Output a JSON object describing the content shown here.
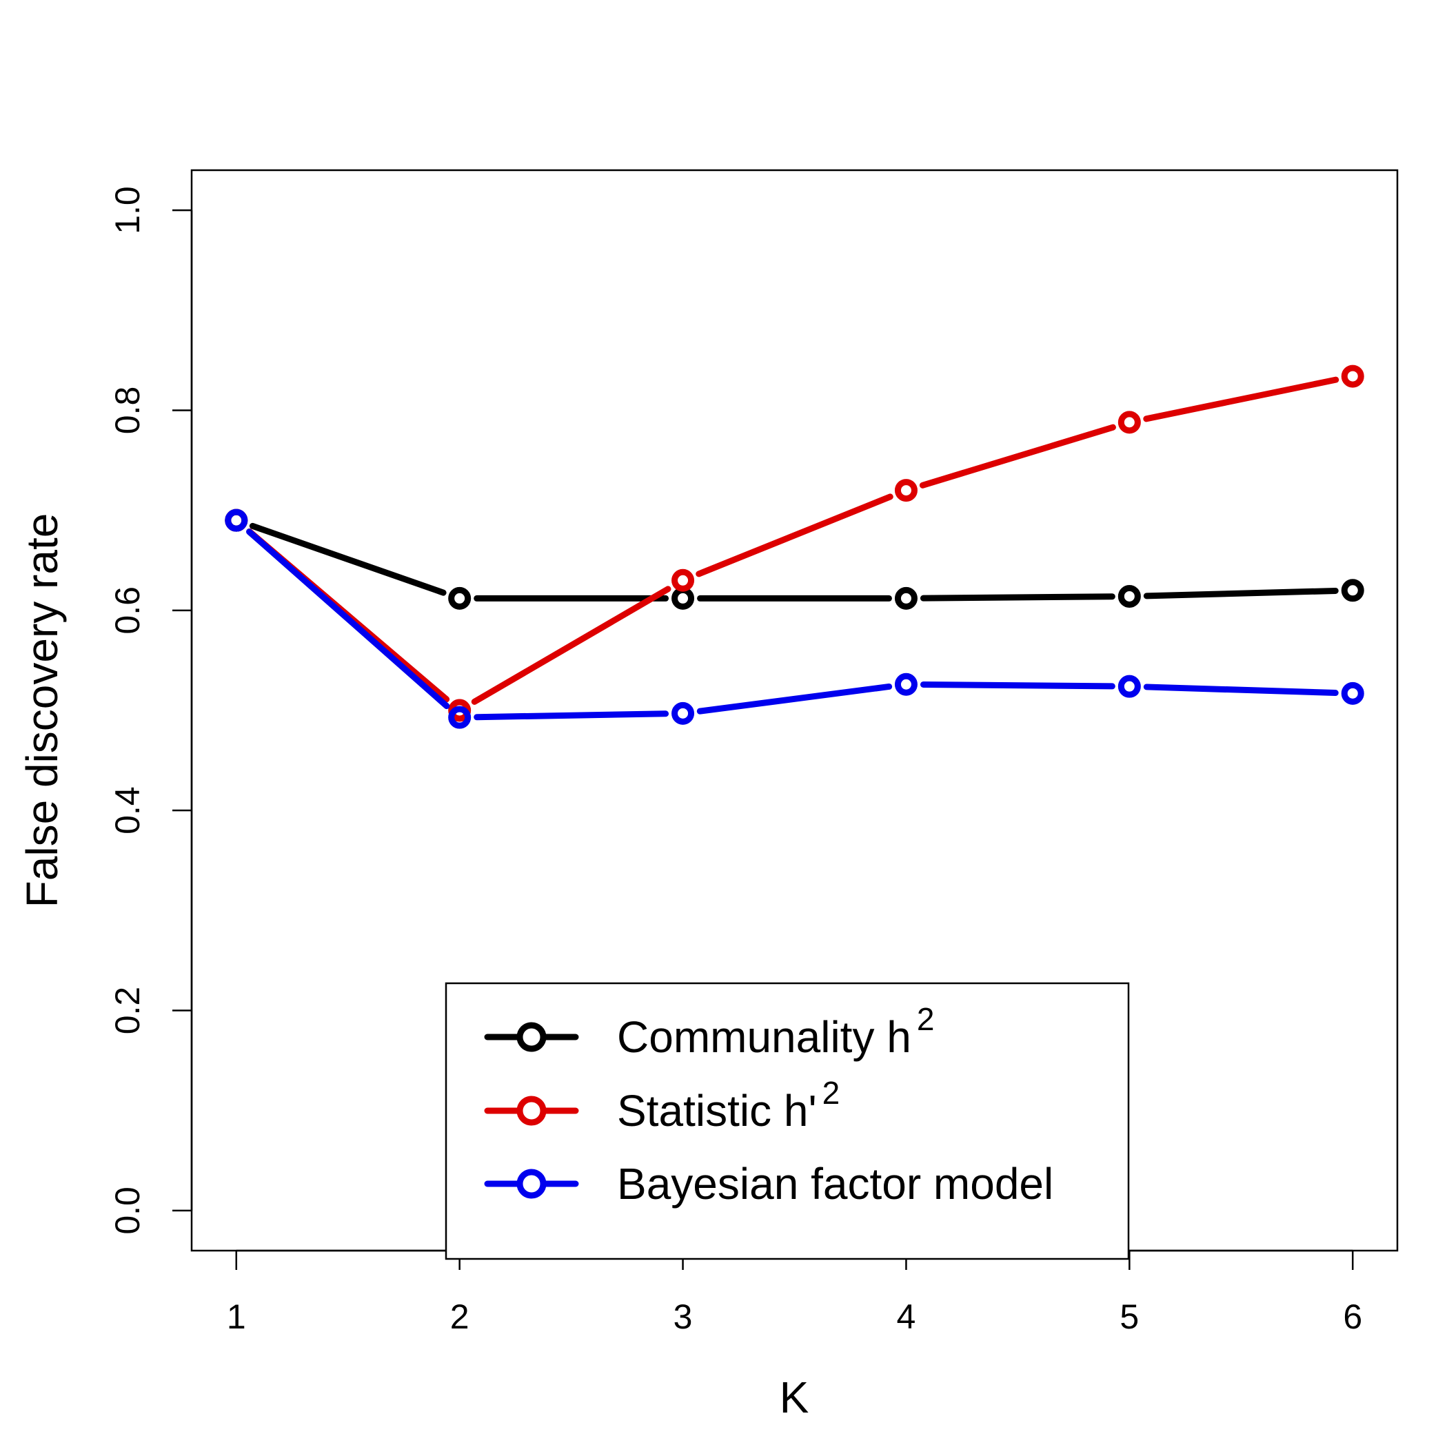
{
  "chart_data": {
    "type": "line",
    "xlabel": "K",
    "ylabel": "False discovery rate",
    "xlim": [
      0.8,
      6.2
    ],
    "ylim": [
      -0.04,
      1.04
    ],
    "x_ticks": [
      "1",
      "2",
      "3",
      "4",
      "5",
      "6"
    ],
    "y_ticks": [
      "0.0",
      "0.2",
      "0.4",
      "0.6",
      "0.8",
      "1.0"
    ],
    "grid": false,
    "legend_position": "bottom-center",
    "x": [
      1,
      2,
      3,
      4,
      5,
      6
    ],
    "series": [
      {
        "name": "Communality h",
        "name_superscript": "2",
        "color": "#000000",
        "marker": "open-circle",
        "values": [
          0.69,
          0.612,
          0.612,
          0.612,
          0.614,
          0.62
        ]
      },
      {
        "name": "Statistic h'",
        "name_superscript": "2",
        "color": "#dd0000",
        "marker": "open-circle",
        "values": [
          0.69,
          0.5,
          0.63,
          0.72,
          0.788,
          0.834
        ]
      },
      {
        "name": "Bayesian factor model",
        "name_superscript": "",
        "color": "#0000ee",
        "marker": "open-circle",
        "values": [
          0.69,
          0.493,
          0.497,
          0.526,
          0.524,
          0.517
        ]
      }
    ]
  }
}
